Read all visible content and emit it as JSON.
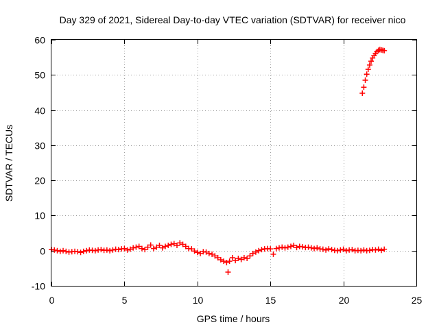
{
  "chart_data": {
    "type": "scatter",
    "title": "Day 329 of 2021, Sidereal Day-to-day VTEC variation (SDTVAR) for receiver nico",
    "xlabel": "GPS time / hours",
    "ylabel": "SDTVAR / TECUs",
    "xlim": [
      0,
      25
    ],
    "ylim": [
      -10,
      60
    ],
    "xticks": [
      0,
      5,
      10,
      15,
      20,
      25
    ],
    "yticks": [
      -10,
      0,
      10,
      20,
      30,
      40,
      50,
      60
    ],
    "xtick_labels": [
      "0",
      "5",
      "10",
      "15",
      "20",
      "25"
    ],
    "ytick_labels": [
      "-10",
      "0",
      "10",
      "20",
      "30",
      "40",
      "50",
      "60"
    ],
    "grid": true,
    "marker": "plus",
    "color": "#ff0000",
    "series": [
      {
        "name": "SDTVAR",
        "x": [
          0.0,
          0.2,
          0.4,
          0.6,
          0.8,
          1.0,
          1.2,
          1.4,
          1.6,
          1.8,
          2.0,
          2.2,
          2.4,
          2.6,
          2.8,
          3.0,
          3.2,
          3.4,
          3.6,
          3.8,
          4.0,
          4.2,
          4.4,
          4.6,
          4.8,
          5.0,
          5.2,
          5.4,
          5.6,
          5.8,
          6.0,
          6.2,
          6.4,
          6.6,
          6.8,
          7.0,
          7.2,
          7.4,
          7.6,
          7.8,
          8.0,
          8.2,
          8.4,
          8.6,
          8.8,
          9.0,
          9.2,
          9.4,
          9.6,
          9.8,
          10.0,
          10.2,
          10.4,
          10.6,
          10.8,
          11.0,
          11.2,
          11.4,
          11.6,
          11.8,
          12.0,
          12.1,
          12.2,
          12.4,
          12.6,
          12.8,
          13.0,
          13.2,
          13.4,
          13.6,
          13.8,
          14.0,
          14.2,
          14.4,
          14.6,
          14.8,
          15.0,
          15.2,
          15.4,
          15.6,
          15.8,
          16.0,
          16.2,
          16.4,
          16.6,
          16.8,
          17.0,
          17.2,
          17.4,
          17.6,
          17.8,
          18.0,
          18.2,
          18.4,
          18.6,
          18.8,
          19.0,
          19.2,
          19.4,
          19.6,
          19.8,
          20.0,
          20.2,
          20.4,
          20.6,
          20.8,
          21.0,
          21.2,
          21.4,
          21.6,
          21.8,
          22.0,
          22.2,
          22.4,
          22.6,
          22.8,
          21.3,
          21.4,
          21.5,
          21.6,
          21.7,
          21.8,
          21.9,
          22.0,
          22.1,
          22.2,
          22.3,
          22.4,
          22.5,
          22.6,
          22.7,
          22.8
        ],
        "y": [
          0.3,
          0.2,
          0.0,
          -0.2,
          0.0,
          -0.2,
          -0.4,
          -0.3,
          -0.2,
          -0.3,
          -0.5,
          -0.2,
          0.0,
          0.2,
          0.1,
          0.0,
          0.2,
          0.3,
          0.1,
          0.2,
          0.0,
          0.2,
          0.4,
          0.3,
          0.5,
          0.6,
          0.2,
          0.4,
          0.8,
          1.0,
          1.2,
          0.6,
          0.3,
          1.0,
          1.6,
          0.6,
          1.0,
          1.5,
          0.8,
          1.2,
          1.5,
          1.8,
          2.0,
          1.5,
          2.2,
          1.8,
          1.2,
          0.6,
          0.5,
          -0.1,
          -0.5,
          -0.8,
          -0.3,
          -0.4,
          -0.8,
          -1.0,
          -1.5,
          -2.0,
          -2.6,
          -3.0,
          -3.4,
          -6.1,
          -3.0,
          -2.0,
          -2.8,
          -2.2,
          -2.5,
          -2.0,
          -2.2,
          -1.5,
          -0.8,
          -0.4,
          0.0,
          0.3,
          0.5,
          0.6,
          0.5,
          -1.0,
          0.6,
          0.8,
          1.0,
          0.8,
          1.0,
          1.2,
          1.5,
          0.9,
          1.2,
          1.1,
          0.9,
          1.0,
          0.8,
          0.6,
          0.8,
          0.5,
          0.4,
          0.2,
          0.5,
          0.3,
          0.1,
          0.0,
          0.2,
          0.4,
          0.0,
          0.2,
          0.3,
          0.0,
          0.1,
          0.0,
          0.2,
          0.0,
          0.1,
          0.3,
          0.2,
          0.4,
          0.1,
          0.4,
          44.8,
          46.5,
          48.5,
          50.2,
          51.6,
          52.8,
          53.9,
          54.8,
          55.5,
          56.1,
          56.6,
          57.0,
          57.2,
          57.1,
          57.0,
          56.9
        ]
      }
    ]
  }
}
